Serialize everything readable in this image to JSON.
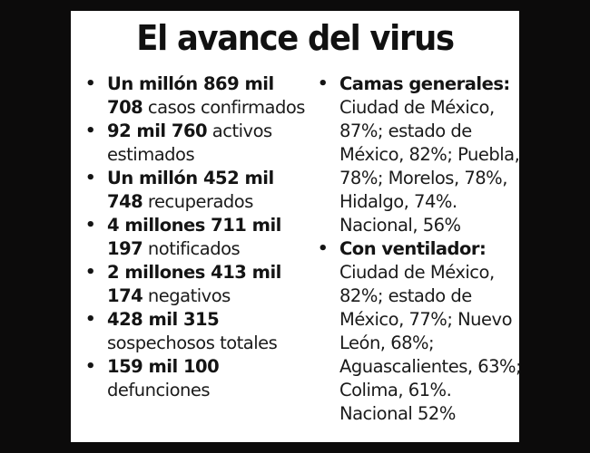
{
  "title": "El avance del virus",
  "left_column": [
    {
      "bold": "Un millón 869 mil 708",
      "text": " casos confirmados"
    },
    {
      "bold": "92 mil 760",
      "text": " activos estimados"
    },
    {
      "bold": "Un millón 452 mil 748",
      "text": " recuperados"
    },
    {
      "bold": "4 millones 711 mil 197",
      "text": " notificados"
    },
    {
      "bold": "2 millones 413 mil 174",
      "text": " negativos"
    },
    {
      "bold": "428 mil 315",
      "text": " sospechosos totales"
    },
    {
      "bold": "159 mil 100",
      "text": " defunciones"
    }
  ],
  "right_column": [
    {
      "bold": "Camas generales:",
      "text": " Ciudad de México, 87%; estado de México, 82%; Puebla, 78%; Morelos, 78%, Hidalgo, 74%. Nacional, 56%"
    },
    {
      "bold": "Con ventilador:",
      "text": " Ciudad de México, 82%; estado de México, 77%; Nuevo León, 68%; Aguascalientes, 63%; Colima, 61%. Nacional 52%"
    }
  ],
  "bullet_glyph": "•",
  "colors": {
    "background": "#0c0b0b",
    "panel": "#ffffff",
    "text": "#141414"
  }
}
